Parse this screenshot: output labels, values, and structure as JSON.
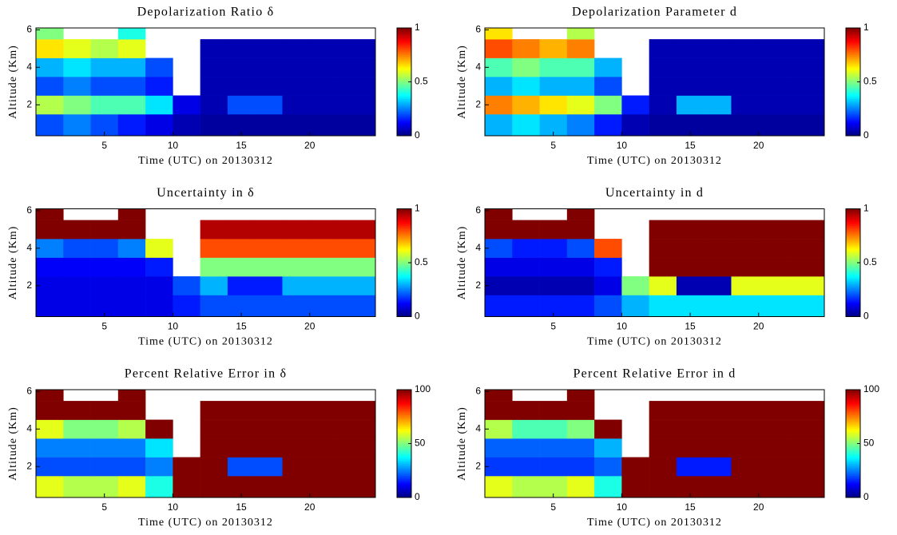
{
  "chart_data": [
    {
      "type": "heatmap",
      "title": "Depolarization Ratio δ",
      "xlabel": "Time (UTC) on 20130312",
      "ylabel": "Altitude (Km)",
      "colormap": "jet",
      "xbins": [
        0,
        2,
        4,
        6,
        8,
        10,
        12,
        14,
        16,
        18,
        20,
        22,
        24.8
      ],
      "ybins": [
        0.35,
        1.5,
        2.5,
        3.5,
        4.5,
        5.5,
        6.1
      ],
      "xlim": [
        0,
        24.8
      ],
      "ylim": [
        0.35,
        6.1
      ],
      "xticks": [
        5,
        10,
        15,
        20
      ],
      "yticks": [
        2,
        4,
        6
      ],
      "clim": [
        0,
        1
      ],
      "cticks": [
        0,
        0.5,
        1
      ],
      "z": [
        [
          0.2,
          0.25,
          0.2,
          0.15,
          0.1,
          0.05,
          0.03,
          0.03,
          0.03,
          0.03,
          0.03,
          0.03
        ],
        [
          0.55,
          0.5,
          0.45,
          0.45,
          0.35,
          0.1,
          0.05,
          0.2,
          0.2,
          0.05,
          0.05,
          0.05
        ],
        [
          0.2,
          0.25,
          0.2,
          0.2,
          0.15,
          null,
          0.05,
          0.05,
          0.05,
          0.05,
          0.05,
          0.05
        ],
        [
          0.3,
          0.35,
          0.3,
          0.3,
          0.2,
          null,
          0.05,
          0.05,
          0.05,
          0.05,
          0.05,
          0.05
        ],
        [
          0.65,
          0.6,
          0.55,
          0.6,
          null,
          null,
          0.05,
          0.05,
          0.05,
          0.05,
          0.05,
          0.05
        ],
        [
          0.5,
          null,
          null,
          0.4,
          null,
          null,
          null,
          null,
          null,
          null,
          null,
          null
        ]
      ]
    },
    {
      "type": "heatmap",
      "title": "Depolarization Parameter d",
      "xlabel": "Time (UTC) on 20130312",
      "ylabel": "Altitude (Km)",
      "colormap": "jet",
      "xbins": [
        0,
        2,
        4,
        6,
        8,
        10,
        12,
        14,
        16,
        18,
        20,
        22,
        24.8
      ],
      "ybins": [
        0.35,
        1.5,
        2.5,
        3.5,
        4.5,
        5.5,
        6.1
      ],
      "xlim": [
        0,
        24.8
      ],
      "ylim": [
        0.35,
        6.1
      ],
      "xticks": [
        5,
        10,
        15,
        20
      ],
      "yticks": [
        2,
        4,
        6
      ],
      "clim": [
        0,
        1
      ],
      "cticks": [
        0,
        0.5,
        1
      ],
      "z": [
        [
          0.3,
          0.35,
          0.3,
          0.25,
          0.15,
          0.05,
          0.03,
          0.03,
          0.03,
          0.03,
          0.03,
          0.03
        ],
        [
          0.75,
          0.7,
          0.65,
          0.6,
          0.5,
          0.15,
          0.05,
          0.3,
          0.3,
          0.05,
          0.05,
          0.05
        ],
        [
          0.3,
          0.35,
          0.3,
          0.3,
          0.2,
          null,
          0.05,
          0.05,
          0.05,
          0.05,
          0.05,
          0.05
        ],
        [
          0.45,
          0.5,
          0.45,
          0.45,
          0.3,
          null,
          0.05,
          0.05,
          0.05,
          0.05,
          0.05,
          0.05
        ],
        [
          0.8,
          0.75,
          0.7,
          0.75,
          null,
          null,
          0.05,
          0.05,
          0.05,
          0.05,
          0.05,
          0.05
        ],
        [
          0.65,
          null,
          null,
          0.55,
          null,
          null,
          null,
          null,
          null,
          null,
          null,
          null
        ]
      ]
    },
    {
      "type": "heatmap",
      "title": "Uncertainty in δ",
      "xlabel": "Time (UTC) on 20130312",
      "ylabel": "Altitude (Km)",
      "colormap": "jet",
      "xbins": [
        0,
        2,
        4,
        6,
        8,
        10,
        12,
        14,
        16,
        18,
        20,
        22,
        24.8
      ],
      "ybins": [
        0.35,
        1.5,
        2.5,
        3.5,
        4.5,
        5.5,
        6.1
      ],
      "xlim": [
        0,
        24.8
      ],
      "ylim": [
        0.35,
        6.1
      ],
      "xticks": [
        5,
        10,
        15,
        20
      ],
      "yticks": [
        2,
        4,
        6
      ],
      "clim": [
        0,
        1
      ],
      "cticks": [
        0,
        0.5,
        1
      ],
      "z": [
        [
          0.1,
          0.1,
          0.1,
          0.1,
          0.1,
          0.15,
          0.2,
          0.2,
          0.2,
          0.2,
          0.2,
          0.2
        ],
        [
          0.1,
          0.1,
          0.1,
          0.1,
          0.1,
          0.2,
          0.3,
          0.15,
          0.15,
          0.3,
          0.3,
          0.3
        ],
        [
          0.12,
          0.12,
          0.12,
          0.12,
          0.15,
          null,
          0.5,
          0.5,
          0.5,
          0.5,
          0.5,
          0.5
        ],
        [
          0.25,
          0.2,
          0.2,
          0.25,
          0.6,
          null,
          0.8,
          0.8,
          0.8,
          0.8,
          0.8,
          0.8
        ],
        [
          1,
          1,
          1,
          1,
          null,
          null,
          0.95,
          0.95,
          0.95,
          0.95,
          0.95,
          0.95
        ],
        [
          1,
          null,
          null,
          1,
          null,
          null,
          null,
          null,
          null,
          null,
          null,
          null
        ]
      ]
    },
    {
      "type": "heatmap",
      "title": "Uncertainty in d",
      "xlabel": "Time (UTC) on 20130312",
      "ylabel": "Altitude (Km)",
      "colormap": "jet",
      "xbins": [
        0,
        2,
        4,
        6,
        8,
        10,
        12,
        14,
        16,
        18,
        20,
        22,
        24.8
      ],
      "ybins": [
        0.35,
        1.5,
        2.5,
        3.5,
        4.5,
        5.5,
        6.1
      ],
      "xlim": [
        0,
        24.8
      ],
      "ylim": [
        0.35,
        6.1
      ],
      "xticks": [
        5,
        10,
        15,
        20
      ],
      "yticks": [
        2,
        4,
        6
      ],
      "clim": [
        0,
        1
      ],
      "cticks": [
        0,
        0.5,
        1
      ],
      "z": [
        [
          0.15,
          0.15,
          0.15,
          0.15,
          0.2,
          0.3,
          0.35,
          0.35,
          0.35,
          0.35,
          0.35,
          0.35
        ],
        [
          0.05,
          0.05,
          0.05,
          0.05,
          0.1,
          0.5,
          0.6,
          0.05,
          0.05,
          0.6,
          0.6,
          0.6
        ],
        [
          0.1,
          0.1,
          0.1,
          0.1,
          0.15,
          null,
          1,
          1,
          1,
          1,
          1,
          1
        ],
        [
          0.2,
          0.15,
          0.15,
          0.2,
          0.8,
          null,
          1,
          1,
          1,
          1,
          1,
          1
        ],
        [
          1,
          1,
          1,
          1,
          null,
          null,
          1,
          1,
          1,
          1,
          1,
          1
        ],
        [
          1,
          null,
          null,
          1,
          null,
          null,
          null,
          null,
          null,
          null,
          null,
          null
        ]
      ]
    },
    {
      "type": "heatmap",
      "title": "Percent Relative Error in δ",
      "xlabel": "Time (UTC) on 20130312",
      "ylabel": "Altitude (Km)",
      "colormap": "jet",
      "xbins": [
        0,
        2,
        4,
        6,
        8,
        10,
        12,
        14,
        16,
        18,
        20,
        22,
        24.8
      ],
      "ybins": [
        0.35,
        1.5,
        2.5,
        3.5,
        4.5,
        5.5,
        6.1
      ],
      "xlim": [
        0,
        24.8
      ],
      "ylim": [
        0.35,
        6.1
      ],
      "xticks": [
        5,
        10,
        15,
        20
      ],
      "yticks": [
        2,
        4,
        6
      ],
      "clim": [
        0,
        100
      ],
      "cticks": [
        0,
        50,
        100
      ],
      "z": [
        [
          60,
          55,
          55,
          60,
          40,
          100,
          100,
          100,
          100,
          100,
          100,
          100
        ],
        [
          20,
          20,
          20,
          20,
          25,
          100,
          100,
          20,
          20,
          100,
          100,
          100
        ],
        [
          25,
          25,
          25,
          25,
          35,
          null,
          100,
          100,
          100,
          100,
          100,
          100
        ],
        [
          60,
          50,
          50,
          55,
          100,
          null,
          100,
          100,
          100,
          100,
          100,
          100
        ],
        [
          100,
          100,
          100,
          100,
          null,
          null,
          100,
          100,
          100,
          100,
          100,
          100
        ],
        [
          100,
          null,
          null,
          100,
          null,
          null,
          null,
          null,
          null,
          null,
          null,
          null
        ]
      ]
    },
    {
      "type": "heatmap",
      "title": "Percent Relative Error in d",
      "xlabel": "Time (UTC) on 20130312",
      "ylabel": "Altitude (Km)",
      "colormap": "jet",
      "xbins": [
        0,
        2,
        4,
        6,
        8,
        10,
        12,
        14,
        16,
        18,
        20,
        22,
        24.8
      ],
      "ybins": [
        0.35,
        1.5,
        2.5,
        3.5,
        4.5,
        5.5,
        6.1
      ],
      "xlim": [
        0,
        24.8
      ],
      "ylim": [
        0.35,
        6.1
      ],
      "xticks": [
        5,
        10,
        15,
        20
      ],
      "yticks": [
        2,
        4,
        6
      ],
      "clim": [
        0,
        100
      ],
      "cticks": [
        0,
        50,
        100
      ],
      "z": [
        [
          60,
          55,
          55,
          60,
          40,
          100,
          100,
          100,
          100,
          100,
          100,
          100
        ],
        [
          18,
          18,
          18,
          18,
          22,
          100,
          100,
          15,
          15,
          100,
          100,
          100
        ],
        [
          22,
          22,
          22,
          22,
          30,
          null,
          100,
          100,
          100,
          100,
          100,
          100
        ],
        [
          55,
          45,
          45,
          50,
          100,
          null,
          100,
          100,
          100,
          100,
          100,
          100
        ],
        [
          100,
          100,
          100,
          100,
          null,
          null,
          100,
          100,
          100,
          100,
          100,
          100
        ],
        [
          100,
          null,
          null,
          100,
          null,
          null,
          null,
          null,
          null,
          null,
          null,
          null
        ]
      ]
    }
  ]
}
